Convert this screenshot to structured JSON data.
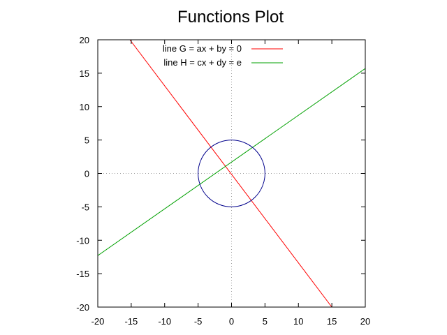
{
  "chart_data": {
    "type": "line",
    "title": "Functions Plot",
    "xlabel": "",
    "ylabel": "",
    "xlim": [
      -20,
      20
    ],
    "ylim": [
      -20,
      20
    ],
    "x_ticks": [
      "-20",
      "-15",
      "-10",
      "-5",
      "0",
      "5",
      "10",
      "15",
      "20"
    ],
    "y_ticks": [
      "20",
      "15",
      "10",
      "5",
      "0",
      "-5",
      "-10",
      "-15",
      "-20"
    ],
    "zero_axes": true,
    "legend_position": "top-left",
    "series": [
      {
        "name": "line G = ax + by = 0",
        "color": "#ff0000",
        "x": [
          -15.2,
          15
        ],
        "y": [
          20,
          -20
        ]
      },
      {
        "name": "line H = cx + dy = e",
        "color": "#00a000",
        "x": [
          -20,
          20
        ],
        "y": [
          -12.3,
          15.7
        ]
      },
      {
        "name": "",
        "shape": "circle",
        "color": "#00008b",
        "center": [
          0,
          0
        ],
        "radius": 5
      }
    ]
  }
}
